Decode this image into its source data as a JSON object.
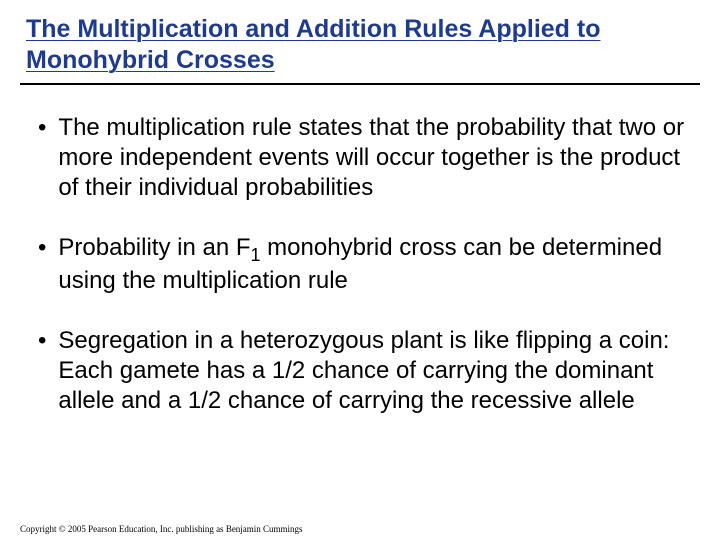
{
  "title": "The Multiplication and Addition Rules Applied to Monohybrid Crosses",
  "bullets": [
    {
      "text": "The multiplication rule states that the probability that two or more independent events will occur together is the product of their individual probabilities"
    },
    {
      "pre": "Probability in an F",
      "sub": "1",
      "post": " monohybrid cross can be determined using the multiplication rule"
    },
    {
      "text": "Segregation in a heterozygous plant is like flipping a coin: Each gamete has a 1/2 chance of carrying the dominant allele and a 1/2 chance of carrying the recessive allele"
    }
  ],
  "copyright": "Copyright © 2005 Pearson Education, Inc. publishing as Benjamin Cummings",
  "colors": {
    "title": "#1f3b8f",
    "text": "#000000",
    "background": "#ffffff",
    "rule": "#000000"
  }
}
